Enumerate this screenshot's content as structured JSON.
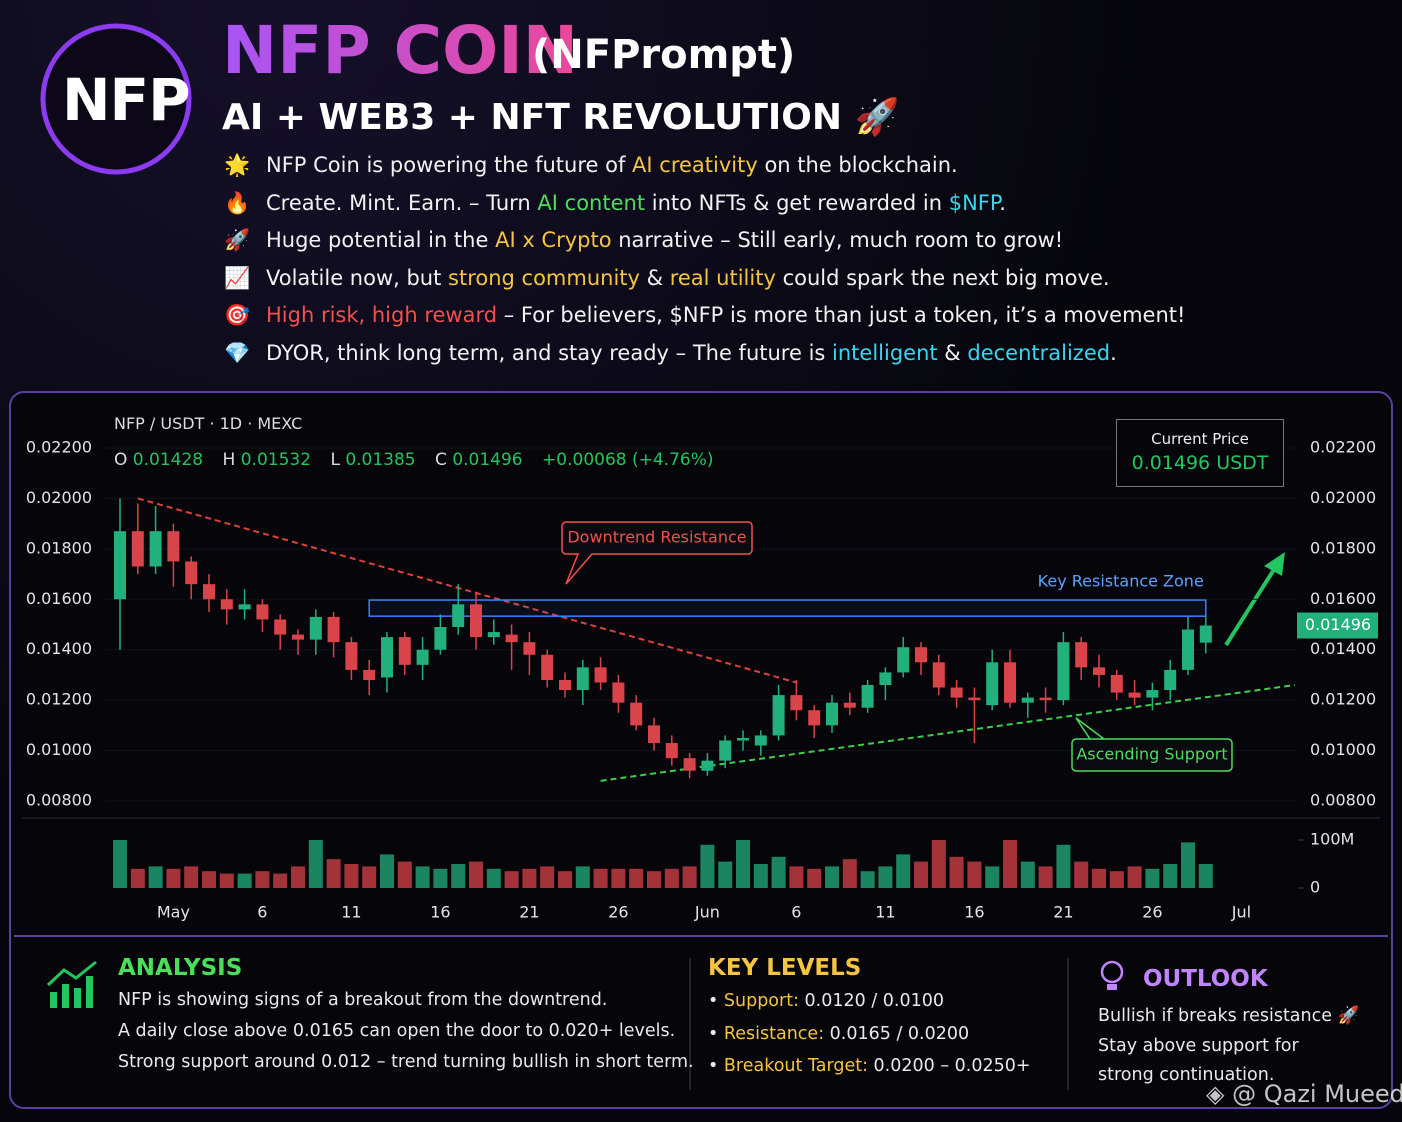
{
  "header": {
    "logo": "NFP",
    "title": "NFP COIN",
    "ticker": "(NFPrompt)",
    "subtitle": "AI + WEB3 + NFT REVOLUTION 🚀"
  },
  "bullets": [
    {
      "icon": "🌟",
      "segments": [
        {
          "text": "NFP Coin is powering the future of "
        },
        {
          "text": "AI creativity",
          "color": "#f5c542"
        },
        {
          "text": " on the blockchain."
        }
      ]
    },
    {
      "icon": "🔥",
      "segments": [
        {
          "text": "Create. Mint. Earn. – Turn "
        },
        {
          "text": "AI content",
          "color": "#4ade5a"
        },
        {
          "text": " into NFTs & get rewarded in "
        },
        {
          "text": "$NFP",
          "color": "#38d6f0"
        },
        {
          "text": "."
        }
      ]
    },
    {
      "icon": "🚀",
      "segments": [
        {
          "text": "Huge potential in the "
        },
        {
          "text": "AI x Crypto",
          "color": "#f5c542"
        },
        {
          "text": " narrative – Still early, much room to grow!"
        }
      ]
    },
    {
      "icon": "📈",
      "segments": [
        {
          "text": "Volatile now, but "
        },
        {
          "text": "strong community",
          "color": "#f5c542"
        },
        {
          "text": " & "
        },
        {
          "text": "real utility",
          "color": "#f5c542"
        },
        {
          "text": " could spark the next big move."
        }
      ]
    },
    {
      "icon": "🎯",
      "segments": [
        {
          "text": "High risk, high reward",
          "color": "#f2504a"
        },
        {
          "text": " – For believers, $NFP is more than just a token, it’s a movement!"
        }
      ]
    },
    {
      "icon": "💎",
      "segments": [
        {
          "text": "DYOR, think long term, and stay ready – The future is "
        },
        {
          "text": "intelligent",
          "color": "#38d6f0"
        },
        {
          "text": " & "
        },
        {
          "text": "decentralized",
          "color": "#38d6f0"
        },
        {
          "text": "."
        }
      ]
    }
  ],
  "chart_data": {
    "type": "candlestick",
    "pair": "NFP / USDT · 1D · MEXC",
    "ohlc_labels": [
      "O",
      "H",
      "L",
      "C"
    ],
    "change": "+0.00068 (+4.76%)",
    "current_price_title": "Current Price",
    "current_price": "0.01496 USDT",
    "categories": [
      null,
      null,
      null,
      "May",
      null,
      null,
      null,
      null,
      "6",
      null,
      null,
      null,
      null,
      "11",
      null,
      null,
      null,
      null,
      "16",
      null,
      null,
      null,
      null,
      "21",
      null,
      null,
      null,
      null,
      "26",
      null,
      null,
      null,
      null,
      "Jun",
      null,
      null,
      null,
      null,
      "6",
      null,
      null,
      null,
      null,
      "11",
      null,
      null,
      null,
      null,
      "16",
      null,
      null,
      null,
      null,
      "21",
      null,
      null,
      null,
      null,
      "26",
      null,
      null,
      null,
      null,
      "Jul"
    ],
    "open": [
      0.016,
      0.0187,
      0.0173,
      0.0187,
      0.0175,
      0.0166,
      0.016,
      0.0156,
      0.0158,
      0.0152,
      0.0146,
      0.0144,
      0.0153,
      0.0143,
      0.0132,
      0.0129,
      0.0145,
      0.0134,
      0.014,
      0.0149,
      0.0158,
      0.0145,
      0.0146,
      0.0143,
      0.0138,
      0.0128,
      0.0124,
      0.0133,
      0.0127,
      0.0119,
      0.011,
      0.0103,
      0.0097,
      0.0092,
      0.0096,
      0.0104,
      0.0102,
      0.0106,
      0.0122,
      0.0116,
      0.011,
      0.0119,
      0.0117,
      0.0126,
      0.0131,
      0.0141,
      0.0135,
      0.0125,
      0.0121,
      0.0118,
      0.0135,
      0.0119,
      0.0121,
      0.012,
      0.0143,
      0.0133,
      0.013,
      0.0123,
      0.0121,
      0.0124,
      0.0132,
      0.01428,
      null,
      null
    ],
    "high": [
      0.02,
      0.0198,
      0.0197,
      0.019,
      0.0177,
      0.017,
      0.0164,
      0.0164,
      0.016,
      0.0154,
      0.0148,
      0.0156,
      0.0155,
      0.0145,
      0.0136,
      0.0147,
      0.0147,
      0.0145,
      0.0154,
      0.0166,
      0.0163,
      0.0152,
      0.015,
      0.0147,
      0.014,
      0.0131,
      0.0136,
      0.0137,
      0.013,
      0.0122,
      0.0113,
      0.0106,
      0.0099,
      0.0099,
      0.0106,
      0.0108,
      0.0108,
      0.0126,
      0.0128,
      0.0118,
      0.0122,
      0.0123,
      0.0128,
      0.0133,
      0.0145,
      0.0143,
      0.0138,
      0.0128,
      0.0125,
      0.014,
      0.014,
      0.0123,
      0.0125,
      0.0147,
      0.0145,
      0.0138,
      0.0132,
      0.0128,
      0.0127,
      0.0136,
      0.0153,
      0.01532,
      null,
      null
    ],
    "low": [
      0.014,
      0.017,
      0.017,
      0.0165,
      0.016,
      0.0155,
      0.015,
      0.0152,
      0.0147,
      0.014,
      0.0138,
      0.0138,
      0.0137,
      0.0128,
      0.0122,
      0.0123,
      0.013,
      0.0128,
      0.0138,
      0.0146,
      0.014,
      0.0142,
      0.0132,
      0.013,
      0.0125,
      0.0121,
      0.0118,
      0.0124,
      0.0115,
      0.0108,
      0.01,
      0.0094,
      0.0089,
      0.009,
      0.0093,
      0.01,
      0.0098,
      0.0104,
      0.0112,
      0.0105,
      0.0107,
      0.0114,
      0.0115,
      0.012,
      0.0129,
      0.013,
      0.0122,
      0.0117,
      0.0103,
      0.0116,
      0.0117,
      0.0113,
      0.0115,
      0.0118,
      0.0128,
      0.0125,
      0.012,
      0.0118,
      0.0116,
      0.012,
      0.013,
      0.01385,
      null,
      null
    ],
    "close": [
      0.0187,
      0.0173,
      0.0187,
      0.0175,
      0.0166,
      0.016,
      0.0156,
      0.0158,
      0.0152,
      0.0146,
      0.0144,
      0.0153,
      0.0143,
      0.0132,
      0.0128,
      0.0145,
      0.0134,
      0.014,
      0.0149,
      0.0158,
      0.0145,
      0.0147,
      0.0143,
      0.0138,
      0.0128,
      0.0124,
      0.0133,
      0.0127,
      0.0119,
      0.011,
      0.0103,
      0.0097,
      0.0092,
      0.0096,
      0.0104,
      0.0105,
      0.0106,
      0.0122,
      0.0116,
      0.011,
      0.0119,
      0.0117,
      0.0126,
      0.0131,
      0.0141,
      0.0135,
      0.0125,
      0.0121,
      0.012,
      0.0135,
      0.0119,
      0.0121,
      0.012,
      0.0143,
      0.0133,
      0.013,
      0.0123,
      0.0121,
      0.0124,
      0.0132,
      0.0148,
      0.01496,
      null,
      null
    ],
    "up_color": "#22b07d",
    "down_color": "#d9434a",
    "ylim": [
      0.008,
      0.022
    ],
    "yticks": [
      {
        "value": 0.008,
        "label": "0.00800"
      },
      {
        "value": 0.01,
        "label": "0.01000"
      },
      {
        "value": 0.012,
        "label": "0.01200"
      },
      {
        "value": 0.014,
        "label": "0.01400"
      },
      {
        "value": 0.016,
        "label": "0.01600"
      },
      {
        "value": 0.018,
        "label": "0.01800"
      },
      {
        "value": 0.02,
        "label": "0.02000"
      },
      {
        "value": 0.022,
        "label": "0.02200"
      }
    ],
    "volume": {
      "values": [
        100000000,
        40000000,
        45000000,
        40000000,
        45000000,
        35000000,
        30000000,
        30000000,
        35000000,
        30000000,
        45000000,
        100000000,
        60000000,
        50000000,
        45000000,
        70000000,
        55000000,
        45000000,
        40000000,
        50000000,
        55000000,
        40000000,
        35000000,
        40000000,
        45000000,
        35000000,
        45000000,
        40000000,
        40000000,
        40000000,
        35000000,
        40000000,
        45000000,
        90000000,
        55000000,
        100000000,
        50000000,
        65000000,
        45000000,
        40000000,
        45000000,
        60000000,
        35000000,
        45000000,
        70000000,
        55000000,
        100000000,
        65000000,
        55000000,
        45000000,
        100000000,
        55000000,
        45000000,
        90000000,
        55000000,
        40000000,
        35000000,
        45000000,
        40000000,
        50000000,
        95000000,
        50000000,
        null,
        null
      ],
      "ylim": [
        0,
        100000000
      ],
      "yticks": [
        0,
        {
          "value": 100000000,
          "label": "100M"
        }
      ]
    },
    "annotations": [
      {
        "kind": "line",
        "label": "Downtrend Resistance",
        "color": "#e0403a",
        "x": [
          1,
          38
        ],
        "y": [
          0.02,
          0.0127
        ]
      },
      {
        "kind": "zone",
        "label": "Key Resistance Zone",
        "color": "#3b82f6",
        "x": [
          14,
          61
        ],
        "y": [
          0.01533,
          0.01597
        ]
      },
      {
        "kind": "line",
        "label": "Ascending Support",
        "color": "#3ccf4e",
        "x": [
          27,
          66
        ],
        "y": [
          0.0088,
          0.0126
        ]
      }
    ]
  },
  "panels": {
    "analysis": {
      "title": "ANALYSIS",
      "lines": [
        "NFP is showing signs of a breakout from the downtrend.",
        "A daily close above 0.0165 can open the door to 0.020+ levels.",
        "Strong support around 0.012 – trend turning bullish in short term."
      ]
    },
    "key_levels": {
      "title": "KEY LEVELS",
      "items": [
        {
          "label": "Support:",
          "value": "0.0120 / 0.0100"
        },
        {
          "label": "Resistance:",
          "value": "0.0165 / 0.0200"
        },
        {
          "label": "Breakout Target:",
          "value": "0.0200 – 0.0250+"
        }
      ]
    },
    "outlook": {
      "title": "OUTLOOK",
      "lines": [
        "Bullish if breaks resistance 🚀",
        "Stay above support for",
        "strong continuation."
      ]
    }
  },
  "watermark": "@ Qazi Mueed"
}
